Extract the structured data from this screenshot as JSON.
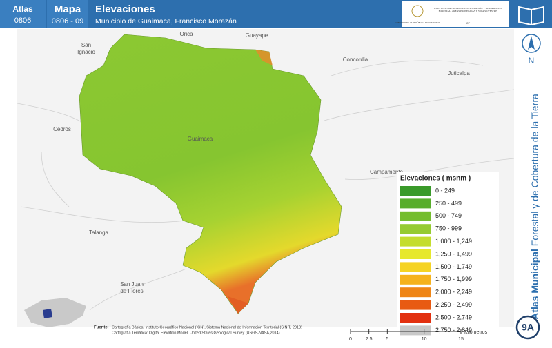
{
  "header": {
    "atlas_label": "Atlas",
    "atlas_code": "0806",
    "map_label": "Mapa",
    "map_code": "0806 - 09",
    "title": "Elevaciones",
    "subtitle": "Municipio de Guaimaca, Francisco Morazán"
  },
  "logos": {
    "government": "GOBIERNO DE LA REPÚBLICA DE HONDURAS",
    "institute": "INSTITUTO NACIONAL DE CONSERVACIÓN Y DESARROLLO FORESTAL, ÁREAS PROTEGIDAS Y VIDA SILVESTRE",
    "institute_short": "ICF"
  },
  "places": [
    {
      "lines": [
        "Orica"
      ]
    },
    {
      "lines": [
        "Guayape"
      ]
    },
    {
      "lines": [
        "San",
        "Ignacio"
      ]
    },
    {
      "lines": [
        "Concordia"
      ]
    },
    {
      "lines": [
        "Juticalpa"
      ]
    },
    {
      "lines": [
        "Cedros"
      ]
    },
    {
      "lines": [
        "Guaimaca"
      ]
    },
    {
      "lines": [
        "Campamento"
      ]
    },
    {
      "lines": [
        "Talanga"
      ]
    },
    {
      "lines": [
        "San Juan",
        "de Flores"
      ]
    }
  ],
  "legend": {
    "title": "Elevaciones ( msnm )",
    "items": [
      {
        "label": "0 - 249",
        "color": "#3a9a2a"
      },
      {
        "label": "250 - 499",
        "color": "#58ad2c"
      },
      {
        "label": "500 - 749",
        "color": "#74bd2e"
      },
      {
        "label": "750 - 999",
        "color": "#95cb30"
      },
      {
        "label": "1,000 - 1,249",
        "color": "#c4dd2e"
      },
      {
        "label": "1,250 - 1,499",
        "color": "#e6e82c"
      },
      {
        "label": "1,500 - 1,749",
        "color": "#f5d323"
      },
      {
        "label": "1,750 - 1,999",
        "color": "#f5b21c"
      },
      {
        "label": "2,000 - 2,249",
        "color": "#ef8516"
      },
      {
        "label": "2,250 - 2,499",
        "color": "#e85a12"
      },
      {
        "label": "2,500 - 2,749",
        "color": "#e2300f"
      },
      {
        "label": "2,750 - 2,849",
        "color": "#c8c8c8"
      }
    ]
  },
  "source": {
    "label": "Fuente:",
    "lines": [
      "Cartografía Básica: Instituto Geográfico Nacional (IGN), Sistema Nacional de Información Territorial (SINIT, 2013)",
      "Cartografía Temática: Digital Elevation Model, United States Geological Survey (USGS-NASA,2014)"
    ]
  },
  "scale": {
    "ticks": [
      0,
      2.5,
      5,
      10,
      15
    ],
    "unit": "Kilómetros"
  },
  "side": {
    "bold": "Atlas Municipal",
    "rest": " Forestal y de Cobertura de la Tierra",
    "north": "N",
    "page": "9A"
  }
}
